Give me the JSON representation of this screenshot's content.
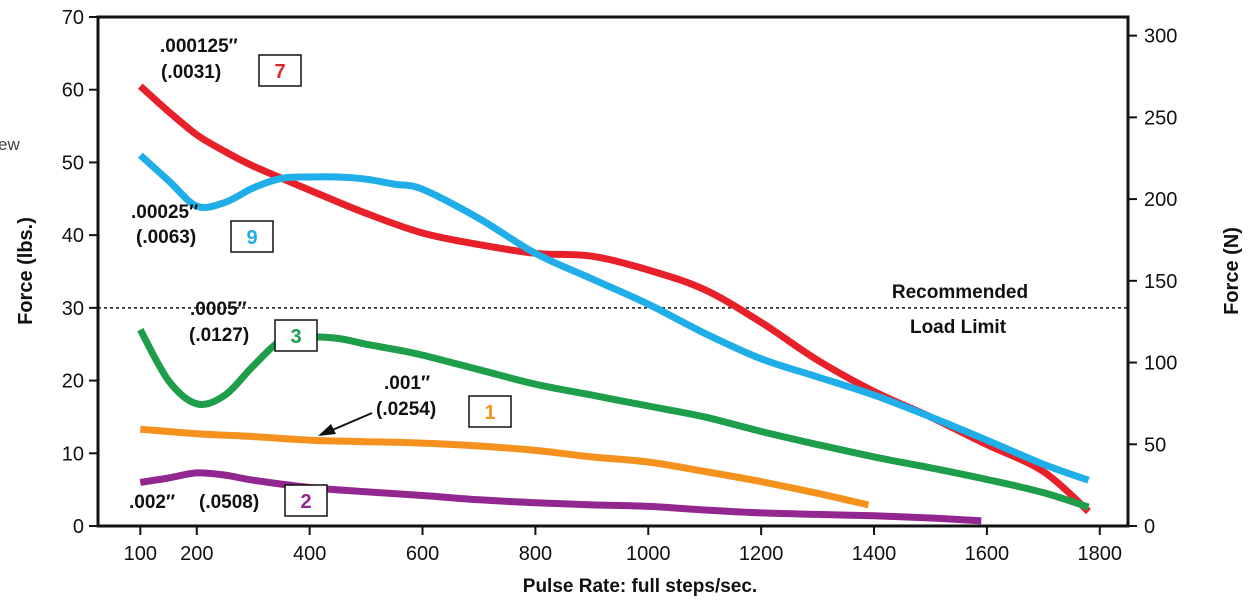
{
  "chart_data": {
    "type": "line",
    "xlabel": "Pulse Rate:  full steps/sec.",
    "ylabel": "Force (lbs.)",
    "ylabel_right": "Force (N)",
    "xlim": [
      25,
      1850
    ],
    "ylim": [
      0,
      70
    ],
    "ylim_right": [
      0,
      311.4
    ],
    "x_ticks": [
      100,
      200,
      400,
      600,
      800,
      1000,
      1200,
      1400,
      1600,
      1800
    ],
    "y_ticks": [
      0,
      10,
      20,
      30,
      40,
      50,
      60,
      70
    ],
    "y_ticks_right": [
      0,
      50,
      100,
      150,
      200,
      250,
      300
    ],
    "grid": false,
    "clipped_text": "ew",
    "reference_line": {
      "y": 30,
      "style": "dotted",
      "label_line1": "Recommended",
      "label_line2": "Load Limit"
    },
    "series": [
      {
        "inch": ".000125″",
        "mm": "(.0031)",
        "badge": "7",
        "color": "#e8202a",
        "x": [
          100,
          150,
          200,
          250,
          300,
          400,
          500,
          600,
          700,
          800,
          900,
          1000,
          1100,
          1200,
          1300,
          1400,
          1500,
          1600,
          1700,
          1780
        ],
        "y": [
          60.5,
          57,
          53.8,
          51.5,
          49.5,
          46.2,
          43,
          40.3,
          38.7,
          37.5,
          37.1,
          35.2,
          32.5,
          28,
          22.8,
          18.5,
          15,
          11.2,
          7.5,
          2
        ]
      },
      {
        "inch": ".00025″",
        "mm": "(.0063)",
        "badge": "9",
        "color": "#1faee8",
        "x": [
          100,
          150,
          200,
          250,
          300,
          350,
          400,
          450,
          500,
          550,
          600,
          700,
          800,
          900,
          1000,
          1100,
          1200,
          1300,
          1400,
          1500,
          1600,
          1700,
          1780
        ],
        "y": [
          51,
          47.5,
          44,
          44.5,
          46.5,
          47.8,
          48,
          48,
          47.7,
          47,
          46.3,
          42.3,
          37.5,
          34,
          30.5,
          26.5,
          23,
          20.5,
          18,
          15,
          11.8,
          8.5,
          6.3
        ]
      },
      {
        "inch": ".0005″",
        "mm": "(.0127)",
        "badge": "3",
        "color": "#1e9d4a",
        "x": [
          100,
          150,
          200,
          250,
          300,
          350,
          400,
          450,
          500,
          550,
          600,
          700,
          800,
          900,
          1000,
          1100,
          1200,
          1300,
          1400,
          1500,
          1600,
          1700,
          1780
        ],
        "y": [
          27,
          20,
          16.8,
          18,
          22,
          25.5,
          26,
          25.8,
          25,
          24.3,
          23.5,
          21.5,
          19.5,
          18,
          16.5,
          15,
          13,
          11.2,
          9.5,
          8,
          6.4,
          4.6,
          2.6
        ]
      },
      {
        "inch": ".001″",
        "mm": "(.0254)",
        "badge": "1",
        "color": "#f5921e",
        "x": [
          100,
          200,
          300,
          400,
          500,
          600,
          700,
          800,
          900,
          1000,
          1100,
          1200,
          1300,
          1390
        ],
        "y": [
          13.3,
          12.7,
          12.3,
          11.8,
          11.6,
          11.4,
          11,
          10.4,
          9.5,
          8.8,
          7.5,
          6.1,
          4.5,
          2.9
        ]
      },
      {
        "inch": ".002″",
        "mm": "(.0508)",
        "badge": "2",
        "color": "#92278f",
        "x": [
          100,
          150,
          200,
          250,
          300,
          400,
          500,
          600,
          700,
          800,
          900,
          1000,
          1100,
          1200,
          1300,
          1400,
          1500,
          1590
        ],
        "y": [
          6,
          6.6,
          7.3,
          7,
          6.3,
          5.3,
          4.7,
          4.2,
          3.6,
          3.2,
          2.9,
          2.7,
          2.2,
          1.8,
          1.6,
          1.4,
          1.1,
          0.7
        ]
      }
    ]
  }
}
